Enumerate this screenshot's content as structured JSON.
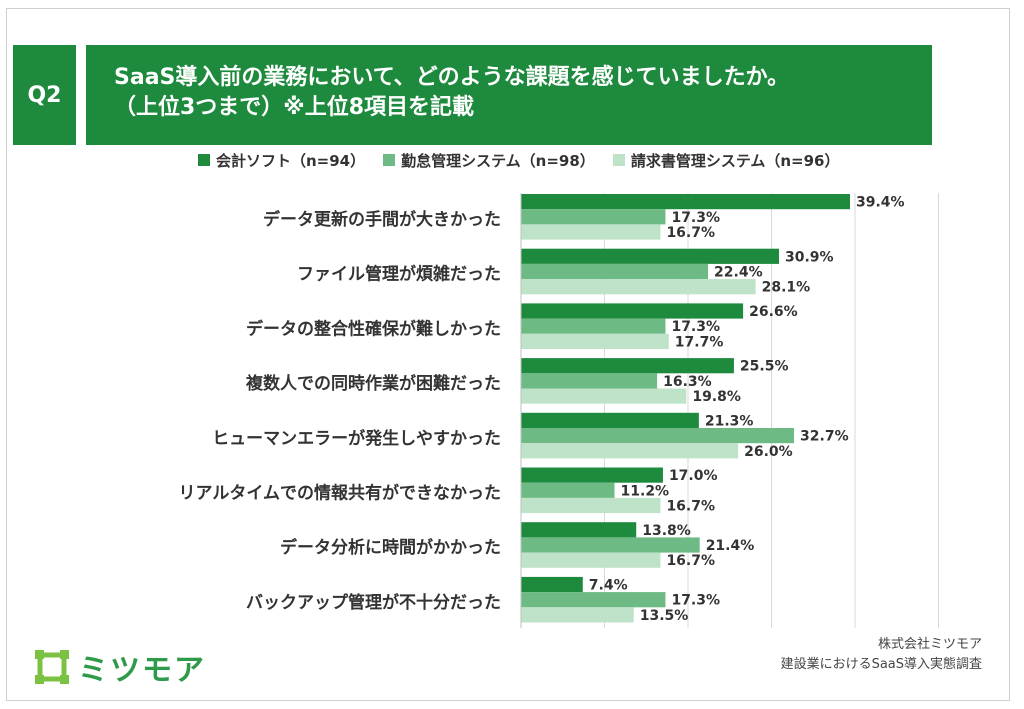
{
  "question_label": "Q2",
  "title_line1": "SaaS導入前の業務において、どのような課題を感じていましたか。",
  "title_line2": "（上位3つまで）※上位8項目を記載",
  "colors": {
    "series1": "#1e8a3e",
    "series2": "#6dba84",
    "series3": "#bfe3c9",
    "brand": "#1e8a3e"
  },
  "chart_data": {
    "type": "bar",
    "orientation": "horizontal",
    "xlim": [
      0,
      50
    ],
    "categories": [
      "データ更新の手間が大きかった",
      "ファイル管理が煩雑だった",
      "データの整合性確保が難しかった",
      "複数人での同時作業が困難だった",
      "ヒューマンエラーが発生しやすかった",
      "リアルタイムでの情報共有ができなかった",
      "データ分析に時間がかかった",
      "バックアップ管理が不十分だった"
    ],
    "series": [
      {
        "name": "会計ソフト（n=94）",
        "values": [
          39.4,
          30.9,
          26.6,
          25.5,
          21.3,
          17.0,
          13.8,
          7.4
        ],
        "labels": [
          "39.4%",
          "30.9%",
          "26.6%",
          "25.5%",
          "21.3%",
          "17.0%",
          "13.8%",
          "7.4%"
        ]
      },
      {
        "name": "勤怠管理システム（n=98）",
        "values": [
          17.3,
          22.4,
          17.3,
          16.3,
          32.7,
          11.2,
          21.4,
          17.3
        ],
        "labels": [
          "17.3%",
          "22.4%",
          "17.3%",
          "16.3%",
          "32.7%",
          "11.2%",
          "21.4%",
          "17.3%"
        ]
      },
      {
        "name": "請求書管理システム（n=96）",
        "values": [
          16.7,
          28.1,
          17.7,
          19.8,
          26.0,
          16.7,
          16.7,
          13.5
        ],
        "labels": [
          "16.7%",
          "28.1%",
          "17.7%",
          "19.8%",
          "26.0%",
          "16.7%",
          "16.7%",
          "13.5%"
        ]
      }
    ]
  },
  "logo_text": "ミツモア",
  "source_line1": "株式会社ミツモア",
  "source_line2": "建設業におけるSaaS導入実態調査"
}
